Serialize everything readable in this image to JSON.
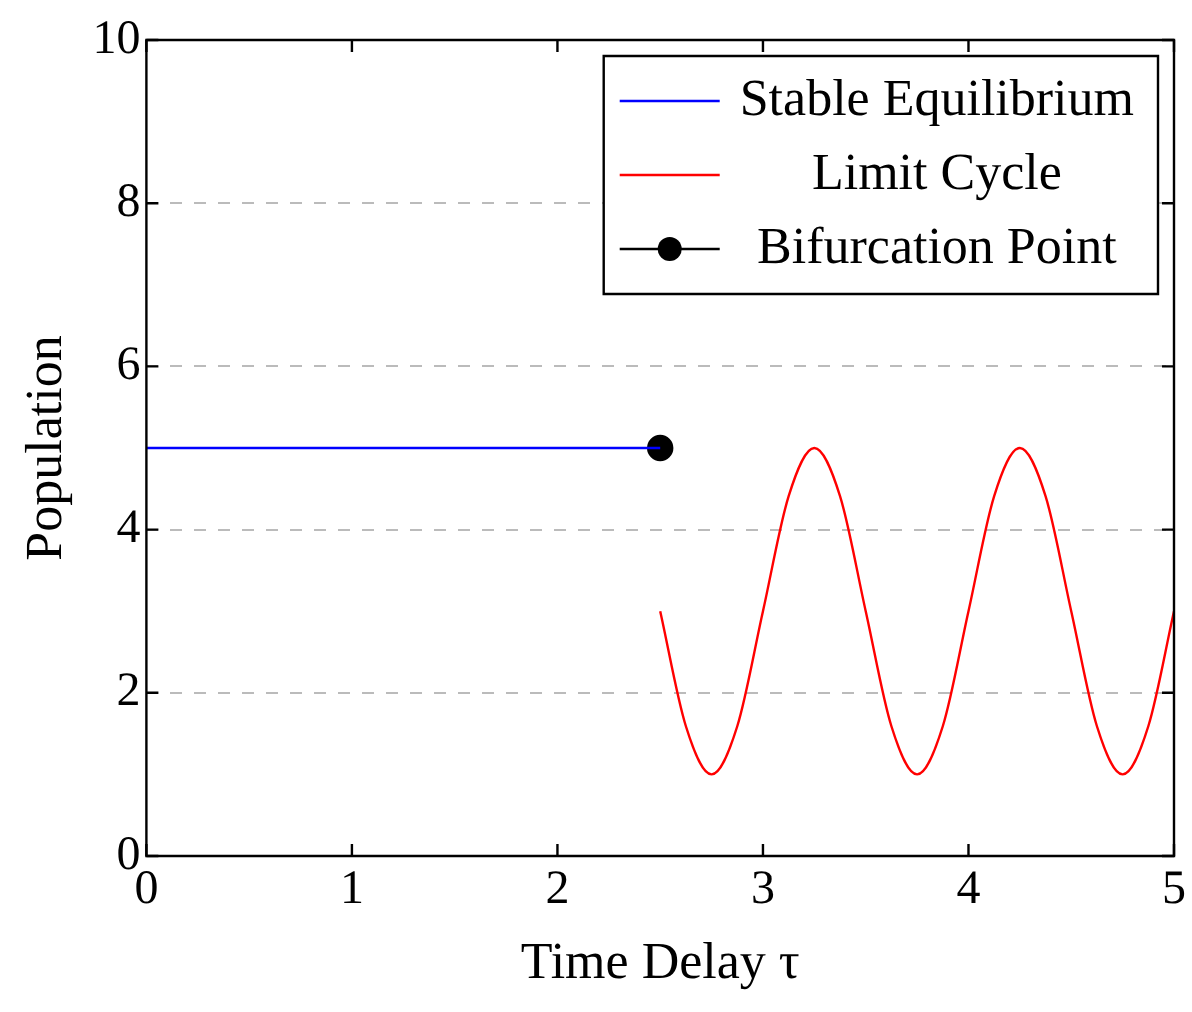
{
  "chart_data": {
    "type": "line",
    "xlabel": "Time Delay τ",
    "ylabel": "Population",
    "xlim": [
      0,
      5
    ],
    "xticks": [
      0,
      1,
      2,
      3,
      4,
      5
    ],
    "ylim": [
      0,
      10
    ],
    "yticks": [
      0,
      2,
      4,
      6,
      8,
      10
    ],
    "grid": "y",
    "legend": "top right",
    "marker": "none",
    "line_style": "solid",
    "series": [
      {
        "name": "Stable Equilibrium",
        "color": "#0000ff",
        "x": [
          0,
          2.5
        ],
        "values": [
          5,
          5
        ]
      },
      {
        "name": "Limit Cycle",
        "color": "#ff0000",
        "x": [
          2.5,
          2.625,
          2.75,
          2.875,
          3,
          3.125,
          3.25,
          3.375,
          3.5,
          3.625,
          3.75,
          3.875,
          4,
          4.125,
          4.25,
          4.375,
          4.5,
          4.625,
          4.75,
          4.875,
          5
        ],
        "values": [
          3,
          1.59,
          1,
          1.59,
          3,
          4.41,
          5,
          4.41,
          3,
          1.59,
          1,
          1.59,
          3,
          4.41,
          5,
          4.41,
          3,
          1.59,
          1,
          1.59,
          3
        ]
      },
      {
        "name": "Bifurcation Point",
        "type": "scatter",
        "marker": "circle",
        "color": "#000000",
        "x": [
          2.5
        ],
        "values": [
          5
        ]
      }
    ]
  }
}
